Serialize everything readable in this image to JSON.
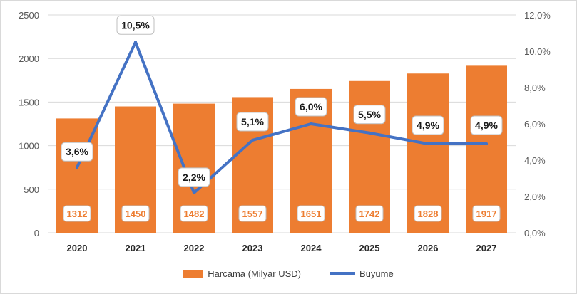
{
  "colors": {
    "bar": "#ed7d31",
    "line": "#4472c4",
    "grid": "#d9d9d9"
  },
  "chart_data": {
    "type": "bar",
    "categories": [
      "2020",
      "2021",
      "2022",
      "2023",
      "2024",
      "2025",
      "2026",
      "2027"
    ],
    "series": [
      {
        "name": "Harcama (Milyar USD)",
        "type": "bar",
        "axis": "left",
        "values": [
          1312,
          1450,
          1482,
          1557,
          1651,
          1742,
          1828,
          1917
        ],
        "labels": [
          "1312",
          "1450",
          "1482",
          "1557",
          "1651",
          "1742",
          "1828",
          "1917"
        ]
      },
      {
        "name": "Büyüme",
        "type": "line",
        "axis": "right",
        "values": [
          3.6,
          10.5,
          2.2,
          5.1,
          6.0,
          5.5,
          4.9,
          4.9
        ],
        "labels": [
          "3,6%",
          "10,5%",
          "2,2%",
          "5,1%",
          "6,0%",
          "5,5%",
          "4,9%",
          "4,9%"
        ]
      }
    ],
    "y_left": {
      "ylim": [
        0,
        2500
      ],
      "ticks": [
        "0",
        "500",
        "1000",
        "1500",
        "2000",
        "2500"
      ]
    },
    "y_right": {
      "ylim": [
        0,
        12
      ],
      "ticks": [
        "0,0%",
        "2,0%",
        "4,0%",
        "6,0%",
        "8,0%",
        "10,0%",
        "12,0%"
      ]
    },
    "title": "",
    "xlabel": "",
    "ylabel": "",
    "grid": true,
    "legend_position": "bottom"
  },
  "legend": {
    "bar_label": "Harcama (Milyar USD)",
    "line_label": "Büyüme"
  }
}
